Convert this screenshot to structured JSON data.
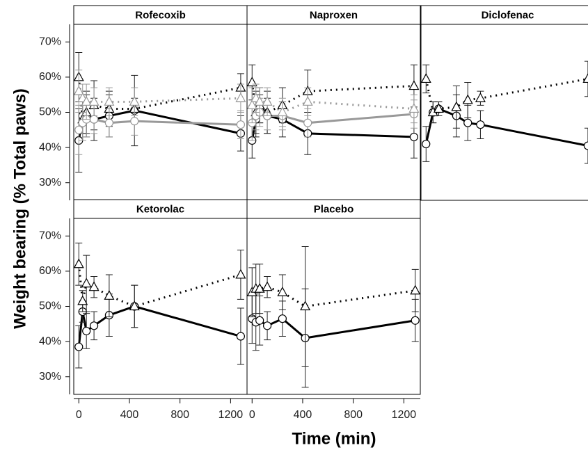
{
  "chart_data": {
    "type": "line",
    "y_label": "Weight bearing (% Total paws)",
    "x_label": "Time (min)",
    "ylim": [
      25,
      75
    ],
    "yticks": [
      {
        "value": 30,
        "label": "30%"
      },
      {
        "value": 40,
        "label": "40%"
      },
      {
        "value": 50,
        "label": "50%"
      },
      {
        "value": 60,
        "label": "60%"
      },
      {
        "value": 70,
        "label": "70%"
      }
    ],
    "xlim": [
      -40,
      1330
    ],
    "xticks": [
      0,
      400,
      800,
      1200
    ],
    "panels": [
      {
        "title": "Rofecoxib",
        "x": [
          0,
          30,
          60,
          120,
          240,
          440,
          1280
        ],
        "series": [
          {
            "color": "#000000",
            "marker": "circle",
            "line": "solid",
            "values": [
              42,
              49,
              49,
              48,
              49,
              50.5,
              44
            ],
            "errors": [
              9,
              5,
              6,
              6,
              6,
              10,
              5
            ]
          },
          {
            "color": "#000000",
            "marker": "triangle",
            "line": "dotted",
            "values": [
              60,
              48,
              50,
              52,
              51,
              51,
              57
            ],
            "errors": [
              7,
              6,
              6,
              7,
              5,
              3,
              4
            ]
          },
          {
            "color": "#999999",
            "marker": "circle",
            "line": "solid",
            "values": [
              45,
              47,
              48,
              48,
              47,
              47.5,
              46.5
            ],
            "errors": [
              7,
              5,
              5,
              4,
              4,
              4,
              4
            ]
          },
          {
            "color": "#999999",
            "marker": "triangle",
            "line": "dotted",
            "values": [
              56,
              54,
              53,
              53,
              53,
              53,
              54
            ],
            "errors": [
              6,
              4,
              5,
              4,
              4,
              4,
              4
            ]
          }
        ]
      },
      {
        "title": "Naproxen",
        "x": [
          0,
          30,
          60,
          120,
          240,
          440,
          1280
        ],
        "series": [
          {
            "color": "#000000",
            "marker": "circle",
            "line": "solid",
            "values": [
              42,
              48,
              51,
              49,
              48,
              44,
              43
            ],
            "errors": [
              5,
              5,
              4,
              5,
              5,
              6,
              6
            ]
          },
          {
            "color": "#000000",
            "marker": "triangle",
            "line": "dotted",
            "values": [
              58.5,
              50,
              52,
              50,
              52,
              56,
              57.5
            ],
            "errors": [
              5,
              6,
              5,
              6,
              5,
              6,
              6
            ]
          },
          {
            "color": "#999999",
            "marker": "circle",
            "line": "solid",
            "values": [
              47,
              49,
              50,
              49,
              49,
              47,
              49.5
            ],
            "errors": [
              5,
              4,
              4,
              4,
              4,
              4,
              4
            ]
          },
          {
            "color": "#999999",
            "marker": "triangle",
            "line": "dotted",
            "values": [
              52,
              54,
              53,
              53,
              50,
              53,
              51
            ],
            "errors": [
              5,
              4,
              4,
              4,
              4,
              4,
              4
            ]
          }
        ]
      },
      {
        "title": "Diclofenac",
        "x": [
          0,
          55,
          100,
          240,
          330,
          430,
          1280
        ],
        "series": [
          {
            "color": "#000000",
            "marker": "circle",
            "line": "solid",
            "values": [
              41,
              50,
              51,
              49,
              47,
              46.5,
              40.5
            ],
            "errors": [
              5,
              3,
              2,
              6,
              5,
              4,
              5
            ]
          },
          {
            "color": "#000000",
            "marker": "triangle",
            "line": "dotted",
            "values": [
              59.5,
              50,
              51,
              51.5,
              53.5,
              54,
              59.5
            ],
            "errors": [
              4,
              3,
              2,
              6,
              5,
              2,
              5
            ]
          }
        ]
      },
      {
        "title": "Ketorolac",
        "x": [
          0,
          30,
          60,
          120,
          240,
          440,
          1280
        ],
        "series": [
          {
            "color": "#000000",
            "marker": "circle",
            "line": "solid",
            "values": [
              38.5,
              48.5,
              43,
              44.5,
              47.5,
              50,
              41.5
            ],
            "errors": [
              6,
              3,
              5,
              4,
              6,
              6,
              8
            ]
          },
          {
            "color": "#000000",
            "marker": "triangle",
            "line": "dotted",
            "values": [
              62,
              51.5,
              56.5,
              55.5,
              53,
              50,
              59
            ],
            "errors": [
              6,
              3,
              8,
              3,
              6,
              6,
              7
            ]
          }
        ]
      },
      {
        "title": "Placebo",
        "x": [
          0,
          30,
          60,
          120,
          240,
          420,
          1290
        ],
        "series": [
          {
            "color": "#000000",
            "marker": "circle",
            "line": "solid",
            "values": [
              46.5,
              45.5,
              46,
              44.5,
              46.5,
              41,
              46
            ],
            "errors": [
              7,
              8,
              7,
              4,
              5,
              14,
              6
            ]
          },
          {
            "color": "#000000",
            "marker": "triangle",
            "line": "dotted",
            "values": [
              54,
              55,
              55,
              55.5,
              54,
              50,
              54.5
            ],
            "errors": [
              7,
              7,
              7,
              3,
              5,
              17,
              6
            ]
          }
        ]
      }
    ]
  }
}
